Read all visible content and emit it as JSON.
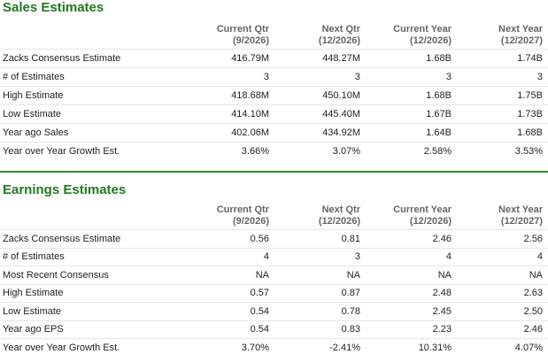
{
  "sales": {
    "title": "Sales Estimates",
    "headers": [
      {
        "line1": "Current Qtr",
        "line2": "(9/2026)"
      },
      {
        "line1": "Next Qtr",
        "line2": "(12/2026)"
      },
      {
        "line1": "Current Year",
        "line2": "(12/2026)"
      },
      {
        "line1": "Next Year",
        "line2": "(12/2027)"
      }
    ],
    "rows": [
      {
        "label": "Zacks Consensus Estimate",
        "values": [
          "416.79M",
          "448.27M",
          "1.68B",
          "1.74B"
        ]
      },
      {
        "label": "# of Estimates",
        "values": [
          "3",
          "3",
          "3",
          "3"
        ]
      },
      {
        "label": "High Estimate",
        "values": [
          "418.68M",
          "450.10M",
          "1.68B",
          "1.75B"
        ]
      },
      {
        "label": "Low Estimate",
        "values": [
          "414.10M",
          "445.40M",
          "1.67B",
          "1.73B"
        ]
      },
      {
        "label": "Year ago Sales",
        "values": [
          "402.06M",
          "434.92M",
          "1.64B",
          "1.68B"
        ]
      },
      {
        "label": "Year over Year Growth Est.",
        "values": [
          "3.66%",
          "3.07%",
          "2.58%",
          "3.53%"
        ]
      }
    ]
  },
  "earnings": {
    "title": "Earnings Estimates",
    "headers": [
      {
        "line1": "Current Qtr",
        "line2": "(9/2026)"
      },
      {
        "line1": "Next Qtr",
        "line2": "(12/2026)"
      },
      {
        "line1": "Current Year",
        "line2": "(12/2026)"
      },
      {
        "line1": "Next Year",
        "line2": "(12/2027)"
      }
    ],
    "rows": [
      {
        "label": "Zacks Consensus Estimate",
        "values": [
          "0.56",
          "0.81",
          "2.46",
          "2.56"
        ]
      },
      {
        "label": "# of Estimates",
        "values": [
          "4",
          "3",
          "4",
          "4"
        ]
      },
      {
        "label": "Most Recent Consensus",
        "values": [
          "NA",
          "NA",
          "NA",
          "NA"
        ]
      },
      {
        "label": "High Estimate",
        "values": [
          "0.57",
          "0.87",
          "2.48",
          "2.63"
        ]
      },
      {
        "label": "Low Estimate",
        "values": [
          "0.54",
          "0.78",
          "2.45",
          "2.50"
        ]
      },
      {
        "label": "Year ago EPS",
        "values": [
          "0.54",
          "0.83",
          "2.23",
          "2.46"
        ]
      },
      {
        "label": "Year over Year Growth Est.",
        "values": [
          "3.70%",
          "-2.41%",
          "10.31%",
          "4.07%"
        ]
      }
    ]
  },
  "colors": {
    "title_green": "#1f7a1f",
    "divider_green": "#2e8b2e",
    "header_gray": "#666666",
    "row_border": "#e6e6e6"
  }
}
